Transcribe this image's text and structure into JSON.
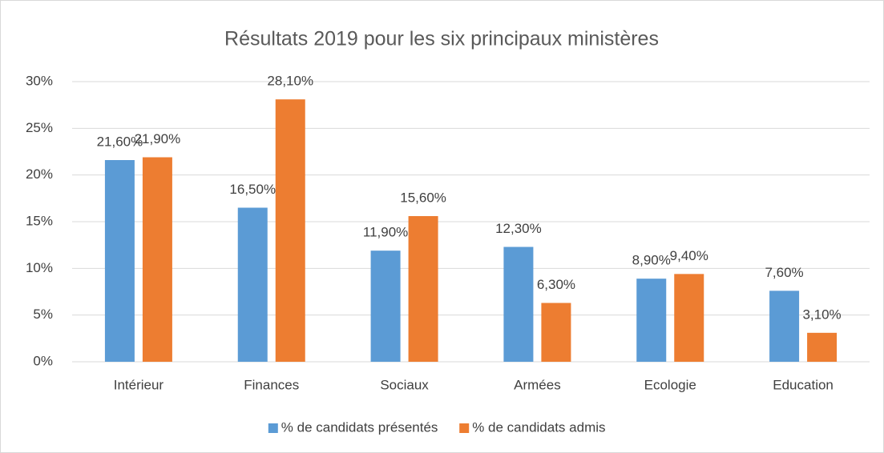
{
  "chart_data": {
    "type": "bar",
    "title": "Résultats 2019 pour les six principaux ministères",
    "categories": [
      "Intérieur",
      "Finances",
      "Sociaux",
      "Armées",
      "Ecologie",
      "Education"
    ],
    "series": [
      {
        "name": "% de candidats présentés",
        "color": "#5b9bd5",
        "values": [
          21.6,
          16.5,
          11.9,
          12.3,
          8.9,
          7.6
        ],
        "value_labels": [
          "21,60%",
          "16,50%",
          "11,90%",
          "12,30%",
          "8,90%",
          "7,60%"
        ]
      },
      {
        "name": "% de candidats admis",
        "color": "#ed7d31",
        "values": [
          21.9,
          28.1,
          15.6,
          6.3,
          9.4,
          3.1
        ],
        "value_labels": [
          "21,90%",
          "28,10%",
          "15,60%",
          "6,30%",
          "9,40%",
          "3,10%"
        ]
      }
    ],
    "ylim": [
      0,
      30
    ],
    "yticks": [
      {
        "value": 0,
        "label": "0%"
      },
      {
        "value": 5,
        "label": "5%"
      },
      {
        "value": 10,
        "label": "10%"
      },
      {
        "value": 15,
        "label": "15%"
      },
      {
        "value": 20,
        "label": "20%"
      },
      {
        "value": 25,
        "label": "25%"
      },
      {
        "value": 30,
        "label": "30%"
      }
    ],
    "grid": true,
    "legend": "bottom"
  }
}
